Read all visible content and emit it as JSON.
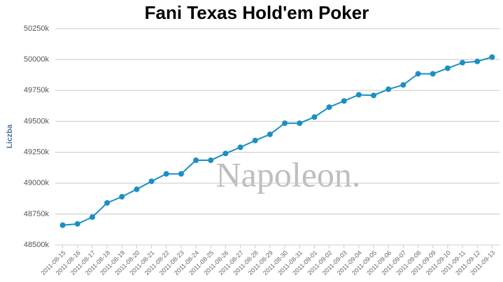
{
  "chart_data": {
    "type": "line",
    "title": "Fani Texas Hold'em Poker",
    "y_label": "Liczba",
    "watermark": "Napoleon.",
    "categories": [
      "2011-08-15",
      "2011-08-16",
      "2011-08-17",
      "2011-08-18",
      "2011-08-19",
      "2011-08-20",
      "2011-08-21",
      "2011-08-22",
      "2011-08-23",
      "2011-08-24",
      "2011-08-25",
      "2011-08-26",
      "2011-08-27",
      "2011-08-28",
      "2011-08-29",
      "2011-08-30",
      "2011-08-31",
      "2011-09-01",
      "2011-09-02",
      "2011-09-03",
      "2011-09-04",
      "2011-09-05",
      "2011-09-06",
      "2011-09-07",
      "2011-09-08",
      "2011-09-09",
      "2011-09-10",
      "2011-09-11",
      "2011-09-12",
      "2011-09-13"
    ],
    "values": [
      48660,
      48670,
      48725,
      48840,
      48890,
      48950,
      49015,
      49075,
      49075,
      49185,
      49185,
      49240,
      49290,
      49345,
      49395,
      49485,
      49485,
      49535,
      49615,
      49665,
      49715,
      49710,
      49760,
      49795,
      49885,
      49885,
      49930,
      49975,
      49985,
      50020
    ],
    "color": "#1a8fc4",
    "ylim": [
      48500,
      50250
    ],
    "yticks": [
      {
        "value": 48500,
        "label": "48500k"
      },
      {
        "value": 48750,
        "label": "48750k"
      },
      {
        "value": 49000,
        "label": "49000k"
      },
      {
        "value": 49250,
        "label": "49250k"
      },
      {
        "value": 49500,
        "label": "49500k"
      },
      {
        "value": 49750,
        "label": "49750k"
      },
      {
        "value": 50000,
        "label": "50000k"
      },
      {
        "value": 50250,
        "label": "50250k"
      }
    ],
    "grid": true
  }
}
